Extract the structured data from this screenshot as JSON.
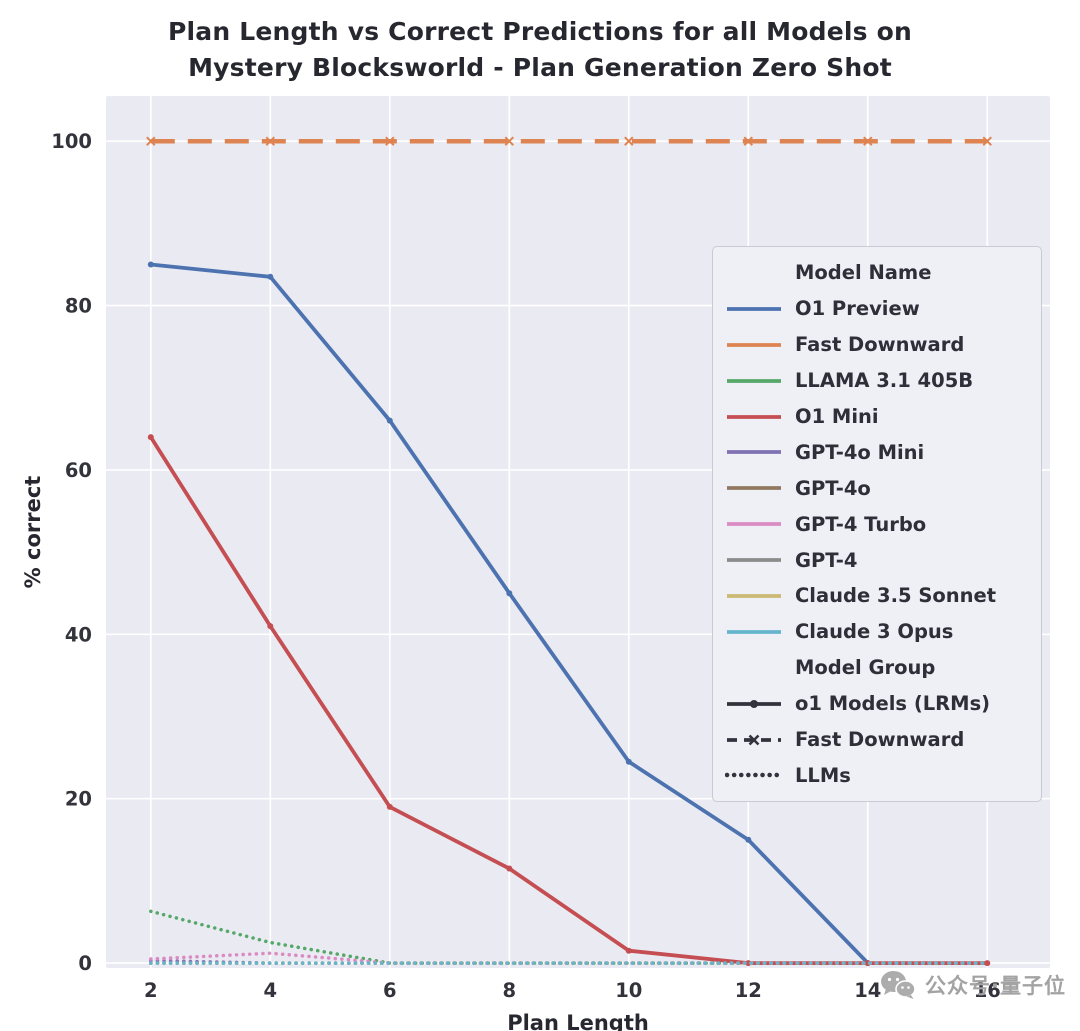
{
  "chart_data": {
    "type": "line",
    "title": "Plan Length vs Correct Predictions for all Models on Mystery Blocksworld - Plan Generation Zero Shot",
    "title_lines": [
      "Plan Length vs Correct Predictions for all Models on",
      "Mystery Blocksworld - Plan Generation Zero Shot"
    ],
    "xlabel": "Plan Length",
    "ylabel": "% correct",
    "x": [
      2,
      4,
      6,
      8,
      10,
      12,
      14,
      16
    ],
    "xticks": [
      2,
      4,
      6,
      8,
      10,
      12,
      14,
      16
    ],
    "yticks": [
      0,
      20,
      40,
      60,
      80,
      100
    ],
    "xlim": [
      1.25,
      17.05
    ],
    "ylim": [
      -0.6,
      105.5
    ],
    "plot_bg": "#eaeaf2",
    "grid_color": "#ffffff",
    "series": [
      {
        "name": "O1 Preview",
        "group": "o1 Models (LRMs)",
        "color": "#4c72b0",
        "style": "solid",
        "marker": "dot",
        "values": [
          85,
          83.5,
          66,
          45,
          24.5,
          15,
          0,
          null
        ]
      },
      {
        "name": "Fast Downward",
        "group": "Fast Downward",
        "color": "#dd8452",
        "style": "dashed",
        "marker": "x",
        "values": [
          100,
          100,
          100,
          100,
          100,
          100,
          100,
          100
        ]
      },
      {
        "name": "LLAMA 3.1 405B",
        "group": "LLMs",
        "color": "#55a868",
        "style": "dotted",
        "marker": null,
        "values": [
          6.3,
          2.5,
          0,
          0,
          0,
          0,
          0,
          0
        ]
      },
      {
        "name": "O1 Mini",
        "group": "o1 Models (LRMs)",
        "color": "#c44e52",
        "style": "solid",
        "marker": "dot",
        "values": [
          64,
          41,
          19,
          11.5,
          1.5,
          0,
          0,
          0
        ]
      },
      {
        "name": "GPT-4o Mini",
        "group": "LLMs",
        "color": "#8172b3",
        "style": "dotted",
        "marker": null,
        "values": [
          0.3,
          0,
          0,
          0,
          0,
          0,
          0,
          0
        ]
      },
      {
        "name": "GPT-4o",
        "group": "LLMs",
        "color": "#937860",
        "style": "dotted",
        "marker": null,
        "values": [
          0,
          0,
          0,
          0,
          0,
          0,
          0,
          0
        ]
      },
      {
        "name": "GPT-4 Turbo",
        "group": "LLMs",
        "color": "#da8bc3",
        "style": "dotted",
        "marker": null,
        "values": [
          0.5,
          1.2,
          0,
          0,
          0,
          0,
          0,
          0
        ]
      },
      {
        "name": "GPT-4",
        "group": "LLMs",
        "color": "#8c8c8c",
        "style": "dotted",
        "marker": null,
        "values": [
          0,
          0,
          0,
          0,
          0,
          0,
          0,
          0
        ]
      },
      {
        "name": "Claude 3.5 Sonnet",
        "group": "LLMs",
        "color": "#ccb974",
        "style": "dotted",
        "marker": null,
        "values": [
          0,
          0,
          0,
          0,
          0,
          0,
          0,
          0
        ]
      },
      {
        "name": "Claude 3 Opus",
        "group": "LLMs",
        "color": "#64b5cd",
        "style": "dotted",
        "marker": null,
        "values": [
          0,
          0,
          0,
          0,
          0,
          0,
          0,
          0
        ]
      }
    ],
    "legend": {
      "position": "upper-right-inside",
      "sections": [
        {
          "header": "Model Name",
          "items": [
            {
              "label": "O1 Preview",
              "color": "#4c72b0",
              "style": "solid"
            },
            {
              "label": "Fast Downward",
              "color": "#dd8452",
              "style": "solid"
            },
            {
              "label": "LLAMA 3.1 405B",
              "color": "#55a868",
              "style": "solid"
            },
            {
              "label": "O1 Mini",
              "color": "#c44e52",
              "style": "solid"
            },
            {
              "label": "GPT-4o Mini",
              "color": "#8172b3",
              "style": "solid"
            },
            {
              "label": "GPT-4o",
              "color": "#937860",
              "style": "solid"
            },
            {
              "label": "GPT-4 Turbo",
              "color": "#da8bc3",
              "style": "solid"
            },
            {
              "label": "GPT-4",
              "color": "#8c8c8c",
              "style": "solid"
            },
            {
              "label": "Claude 3.5 Sonnet",
              "color": "#ccb974",
              "style": "solid"
            },
            {
              "label": "Claude 3 Opus",
              "color": "#64b5cd",
              "style": "solid"
            }
          ]
        },
        {
          "header": "Model Group",
          "items": [
            {
              "label": "o1 Models (LRMs)",
              "color": "#33333d",
              "style": "solid-dot"
            },
            {
              "label": "Fast Downward",
              "color": "#33333d",
              "style": "dashed-x"
            },
            {
              "label": "LLMs",
              "color": "#33333d",
              "style": "dotted"
            }
          ]
        }
      ]
    }
  },
  "watermark": {
    "text": "公众号·量子位",
    "icon": "wechat-icon"
  }
}
